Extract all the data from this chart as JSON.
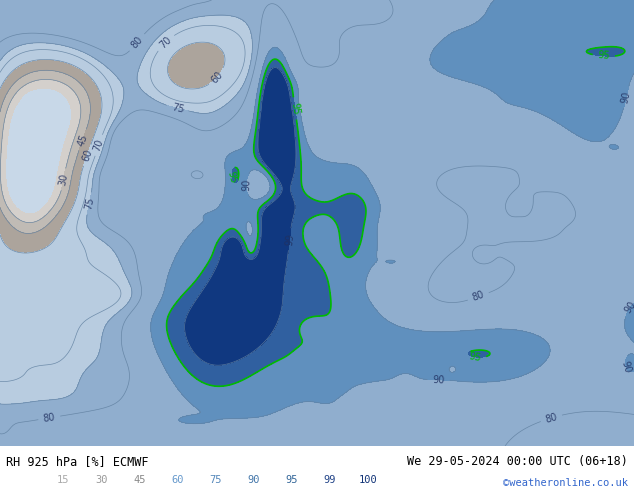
{
  "title_left": "RH 925 hPa [%] ECMWF",
  "title_right": "We 29-05-2024 00:00 UTC (06+18)",
  "credit": "©weatheronline.co.uk",
  "colorbar_levels": [
    15,
    30,
    45,
    60,
    75,
    90,
    95,
    99,
    100
  ],
  "fill_levels": [
    0,
    15,
    30,
    45,
    60,
    75,
    90,
    95,
    99,
    101
  ],
  "fill_colors": [
    "#c8d8e8",
    "#d4d0cc",
    "#c0bbb5",
    "#aca49c",
    "#b8cce0",
    "#90aece",
    "#6090be",
    "#3060a0",
    "#103880"
  ],
  "contour_levels": [
    30,
    45,
    60,
    70,
    75,
    80,
    90,
    95,
    99
  ],
  "contour_color": "#6080a0",
  "contour_linewidth": 0.5,
  "green_contour_level": 95,
  "green_contour_color": "#00bb00",
  "green_linewidth": 1.2,
  "label_fontsize": 7,
  "label_color": "#203060",
  "bottom_bar_color": "#dce8f4",
  "map_bg_color": "#90b8d8",
  "figsize": [
    6.34,
    4.9
  ],
  "dpi": 100,
  "cb_text_colors": [
    "#aaaaaa",
    "#999999",
    "#888888",
    "#6699cc",
    "#5588bb",
    "#4477aa",
    "#336699",
    "#224488",
    "#113377"
  ]
}
